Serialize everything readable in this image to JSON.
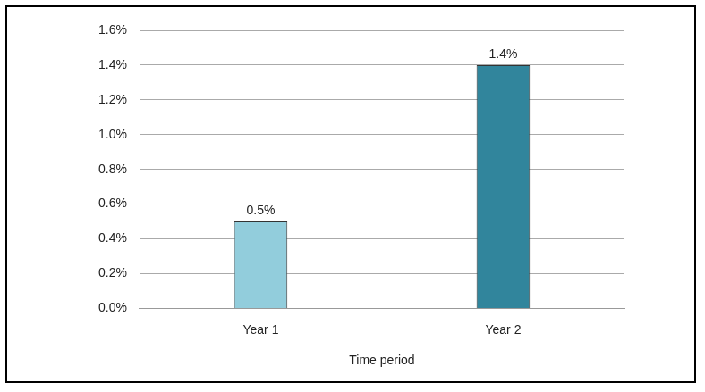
{
  "chart_data": {
    "type": "bar",
    "categories": [
      "Year 1",
      "Year 2"
    ],
    "values": [
      0.5,
      1.4
    ],
    "value_labels": [
      "0.5%",
      "1.4%"
    ],
    "colors": [
      "#92cddc",
      "#31859c"
    ],
    "x_label": "Time period",
    "ylim": [
      0,
      1.6
    ],
    "yticks": [
      {
        "value": 0,
        "label": "0.0%"
      },
      {
        "value": 0.2,
        "label": "0.2%"
      },
      {
        "value": 0.4,
        "label": "0.4%"
      },
      {
        "value": 0.6,
        "label": "0.6%"
      },
      {
        "value": 0.8,
        "label": "0.8%"
      },
      {
        "value": 1.0,
        "label": "1.0%"
      },
      {
        "value": 1.2,
        "label": "1.2%"
      },
      {
        "value": 1.4,
        "label": "1.4%"
      },
      {
        "value": 1.6,
        "label": "1.6%"
      }
    ],
    "grid": true,
    "data_labels": true
  }
}
